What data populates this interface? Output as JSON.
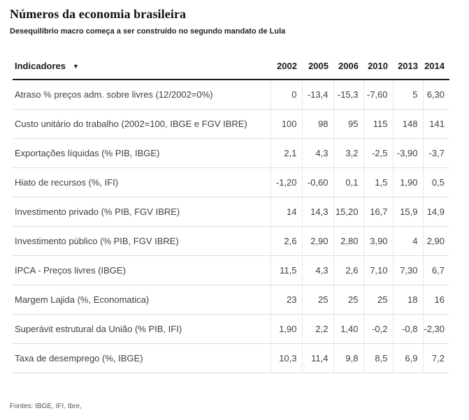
{
  "header": {
    "title": "Números da economia brasileira",
    "subtitle": "Desequilíbrio macro começa a ser construído no segundo mandato de Lula"
  },
  "table": {
    "indicator_header": "Indicadores",
    "sort_icon": "▼",
    "year_columns": [
      "2002",
      "2005",
      "2006",
      "2010",
      "2013",
      "2014"
    ],
    "rows": [
      {
        "label": "Atraso % preços adm. sobre livres (12/2002=0%)",
        "values": [
          "0",
          "-13,4",
          "-15,3",
          "-7,60",
          "5",
          "6,30"
        ]
      },
      {
        "label": "Custo unitário do trabalho (2002=100, IBGE e FGV IBRE)",
        "values": [
          "100",
          "98",
          "95",
          "115",
          "148",
          "141"
        ]
      },
      {
        "label": "Exportações líquidas (% PIB, IBGE)",
        "values": [
          "2,1",
          "4,3",
          "3,2",
          "-2,5",
          "-3,90",
          "-3,7"
        ]
      },
      {
        "label": "Hiato de recursos (%, IFI)",
        "values": [
          "-1,20",
          "-0,60",
          "0,1",
          "1,5",
          "1,90",
          "0,5"
        ]
      },
      {
        "label": "Investimento privado (% PIB, FGV IBRE)",
        "values": [
          "14",
          "14,3",
          "15,20",
          "16,7",
          "15,9",
          "14,9"
        ]
      },
      {
        "label": "Investimento público (% PIB, FGV IBRE)",
        "values": [
          "2,6",
          "2,90",
          "2,80",
          "3,90",
          "4",
          "2,90"
        ]
      },
      {
        "label": "IPCA - Preços livres (IBGE)",
        "values": [
          "11,5",
          "4,3",
          "2,6",
          "7,10",
          "7,30",
          "6,7"
        ]
      },
      {
        "label": "Margem Lajida (%, Economatica)",
        "values": [
          "23",
          "25",
          "25",
          "25",
          "18",
          "16"
        ]
      },
      {
        "label": "Superávit estrutural da União (% PIB, IFI)",
        "values": [
          "1,90",
          "2,2",
          "1,40",
          "-0,2",
          "-0,8",
          "-2,30"
        ]
      },
      {
        "label": "Taxa de desemprego (%, IBGE)",
        "values": [
          "10,3",
          "11,4",
          "9,8",
          "8,5",
          "6,9",
          "7,2"
        ]
      }
    ]
  },
  "footer": {
    "sources": "Fontes: IBGE, IFI, Ibre,"
  },
  "colors": {
    "header_rule": "#1a1a1a",
    "row_rule": "#dedede",
    "column_rule": "#e9e9e9",
    "body_text": "#3f3f3f",
    "muted_text": "#555555"
  },
  "chart_data": {
    "type": "table",
    "title": "Números da economia brasileira",
    "subtitle": "Desequilíbrio macro começa a ser construído no segundo mandato de Lula",
    "columns": [
      "Indicadores",
      "2002",
      "2005",
      "2006",
      "2010",
      "2013",
      "2014"
    ],
    "rows": [
      {
        "indicator": "Atraso % preços adm. sobre livres (12/2002=0%)",
        "values": [
          0,
          -13.4,
          -15.3,
          -7.6,
          5,
          6.3
        ]
      },
      {
        "indicator": "Custo unitário do trabalho (2002=100, IBGE e FGV IBRE)",
        "values": [
          100,
          98,
          95,
          115,
          148,
          141
        ]
      },
      {
        "indicator": "Exportações líquidas (% PIB, IBGE)",
        "values": [
          2.1,
          4.3,
          3.2,
          -2.5,
          -3.9,
          -3.7
        ]
      },
      {
        "indicator": "Hiato de recursos (%, IFI)",
        "values": [
          -1.2,
          -0.6,
          0.1,
          1.5,
          1.9,
          0.5
        ]
      },
      {
        "indicator": "Investimento privado (% PIB, FGV IBRE)",
        "values": [
          14,
          14.3,
          15.2,
          16.7,
          15.9,
          14.9
        ]
      },
      {
        "indicator": "Investimento público (% PIB, FGV IBRE)",
        "values": [
          2.6,
          2.9,
          2.8,
          3.9,
          4,
          2.9
        ]
      },
      {
        "indicator": "IPCA - Preços livres (IBGE)",
        "values": [
          11.5,
          4.3,
          2.6,
          7.1,
          7.3,
          6.7
        ]
      },
      {
        "indicator": "Margem Lajida (%, Economatica)",
        "values": [
          23,
          25,
          25,
          25,
          18,
          16
        ]
      },
      {
        "indicator": "Superávit estrutural da União (% PIB, IFI)",
        "values": [
          1.9,
          2.2,
          1.4,
          -0.2,
          -0.8,
          -2.3
        ]
      },
      {
        "indicator": "Taxa de desemprego (%, IBGE)",
        "values": [
          10.3,
          11.4,
          9.8,
          8.5,
          6.9,
          7.2
        ]
      }
    ],
    "notes": "Fontes: IBGE, IFI, Ibre,",
    "decimal_separator": ",",
    "sorted_by": "Indicadores descending-arrow shown"
  }
}
